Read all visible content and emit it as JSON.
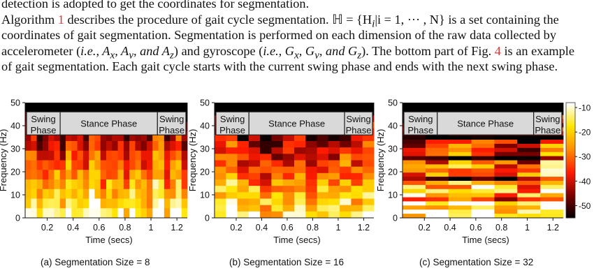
{
  "paragraph": {
    "line0": "detection is adopted to get the coordinates for segmentation.",
    "line1": {
      "a": "Algorithm ",
      "ref": "1",
      "b": " describes the procedure of gait cycle segmentation. ℍ = {H",
      "c": "|i = 1, ··· , N} is a set containing the"
    },
    "line2": "coordinates of gait segmentation. Segmentation is performed on each dimension of the raw data collected by",
    "line3": {
      "a": "accelerometer (",
      "b": "i.e., A",
      "c": ", A",
      "d": ", and A",
      "e": ") and gyroscope (",
      "f": "i.e., G",
      "g": ", G",
      "h": ", and G",
      "i": "). The bottom part of Fig. ",
      "ref": "4",
      "j": " is an example"
    },
    "line4": "of gait segmentation. Each gait cycle starts with the current swing phase and ends with the next swing phase."
  },
  "chart_data": [
    {
      "type": "heatmap",
      "caption": "(a) Segmentation Size = 8",
      "segmentation_size": 8,
      "xlabel": "Time (secs)",
      "ylabel": "Frequency (Hz)",
      "xticks": [
        "0.2",
        "0.4",
        "0.6",
        "0.8",
        "1",
        "1.2"
      ],
      "yticks": [
        "0",
        "10",
        "20",
        "30",
        "40",
        "50"
      ],
      "xlim": [
        0.03,
        1.28
      ],
      "ylim": [
        0,
        50
      ],
      "phases": [
        "Swing Phase",
        "Stance Phase",
        "Swing Phase"
      ]
    },
    {
      "type": "heatmap",
      "caption": "(b) Segmentation Size = 16",
      "segmentation_size": 16,
      "xlabel": "Time (secs)",
      "ylabel": "Frequency (Hz)",
      "xticks": [
        "0.2",
        "0.4",
        "0.6",
        "0.8",
        "1",
        "1.2"
      ],
      "yticks": [
        "0",
        "10",
        "20",
        "30",
        "40",
        "50"
      ],
      "xlim": [
        0.03,
        1.28
      ],
      "ylim": [
        0,
        50
      ],
      "phases": [
        "Swing Phase",
        "Stance Phase",
        "Swing Phase"
      ]
    },
    {
      "type": "heatmap",
      "caption": "(c) Segmentation Size = 32",
      "segmentation_size": 32,
      "xlabel": "Time (secs)",
      "ylabel": "Frequency (Hz)",
      "xticks": [
        "0.2",
        "0.4",
        "0.6",
        "0.8",
        "1",
        "1.2"
      ],
      "yticks": [
        "0",
        "10",
        "20",
        "30",
        "40",
        "50"
      ],
      "xlim": [
        0.03,
        1.28
      ],
      "ylim": [
        0,
        50
      ],
      "phases": [
        "Swing Phase",
        "Stance Phase",
        "Swing Phase"
      ]
    }
  ],
  "colorbar": {
    "ticks": [
      "-10",
      "-20",
      "-30",
      "-40",
      "-50"
    ],
    "range": [
      -55,
      -8
    ],
    "colors": [
      "#000000",
      "#7a0000",
      "#ff1a00",
      "#ff8c00",
      "#ffe600",
      "#ffffff"
    ]
  }
}
